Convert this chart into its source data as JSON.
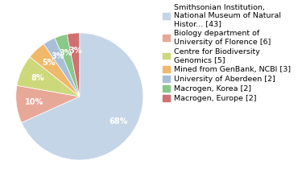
{
  "labels": [
    "Smithsonian Institution,\nNational Museum of Natural\nHistor... [43]",
    "Biology department of\nUniversity of Florence [6]",
    "Centre for Biodiversity\nGenomics [5]",
    "Mined from GenBank, NCBI [3]",
    "University of Aberdeen [2]",
    "Macrogen, Korea [2]",
    "Macrogen, Europe [2]"
  ],
  "values": [
    43,
    6,
    5,
    3,
    2,
    2,
    2
  ],
  "colors": [
    "#c5d5e8",
    "#e8a898",
    "#cdd87a",
    "#f0b86a",
    "#a8bfd8",
    "#88c888",
    "#d07070"
  ],
  "startangle": 90,
  "pctdistance": 0.72,
  "background_color": "#ffffff",
  "legend_fontsize": 6.8,
  "autopct_fontsize": 7.0
}
